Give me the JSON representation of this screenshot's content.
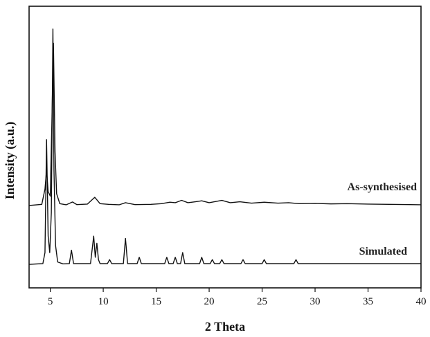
{
  "chart_data": {
    "type": "line",
    "title": "",
    "xlabel": "2 Theta",
    "ylabel": "Intensity (a.u.)",
    "xlim": [
      3,
      40
    ],
    "ylim": [
      -0.09,
      1.05
    ],
    "x_ticks": [
      "5",
      "10",
      "15",
      "20",
      "25",
      "30",
      "35",
      "40"
    ],
    "x_tick_values": [
      5,
      10,
      15,
      20,
      25,
      30,
      35,
      40
    ],
    "grid": false,
    "legend": "none",
    "series": [
      {
        "name": "As-synthesised",
        "color": "#111111",
        "baseline": 0.25,
        "x": [
          3,
          4.2,
          4.5,
          4.65,
          4.8,
          5.0,
          5.15,
          5.3,
          5.45,
          5.6,
          5.9,
          6.5,
          7.1,
          7.5,
          8.5,
          9.2,
          9.7,
          10.5,
          11.5,
          12.1,
          13,
          14.5,
          15.5,
          16.3,
          16.8,
          17.4,
          18,
          18.7,
          19.3,
          20,
          21.2,
          22,
          22.9,
          24,
          25.2,
          26.5,
          27.5,
          28.5,
          30,
          31.5,
          33,
          35,
          37,
          39,
          40
        ],
        "y": [
          0.25,
          0.255,
          0.32,
          0.4,
          0.31,
          0.29,
          0.6,
          0.94,
          0.48,
          0.3,
          0.258,
          0.253,
          0.265,
          0.254,
          0.256,
          0.285,
          0.258,
          0.255,
          0.253,
          0.262,
          0.254,
          0.255,
          0.258,
          0.264,
          0.262,
          0.272,
          0.262,
          0.266,
          0.27,
          0.262,
          0.272,
          0.262,
          0.266,
          0.26,
          0.264,
          0.26,
          0.262,
          0.258,
          0.259,
          0.257,
          0.258,
          0.256,
          0.255,
          0.254,
          0.253
        ]
      },
      {
        "name": "Simulated",
        "color": "#111111",
        "baseline": 0.0,
        "x": [
          3,
          4.3,
          4.5,
          4.65,
          4.8,
          4.95,
          5.1,
          5.25,
          5.35,
          5.5,
          5.7,
          6.2,
          6.8,
          7.0,
          7.2,
          8.8,
          9.1,
          9.25,
          9.4,
          9.55,
          9.7,
          10.4,
          10.6,
          10.8,
          11.9,
          12.1,
          12.3,
          13.2,
          13.4,
          13.6,
          15.8,
          16.0,
          16.2,
          16.6,
          16.8,
          17.0,
          17.3,
          17.5,
          17.7,
          19.1,
          19.3,
          19.5,
          20.1,
          20.3,
          20.5,
          21.0,
          21.2,
          21.4,
          23.0,
          23.2,
          23.4,
          25.0,
          25.2,
          25.4,
          28.0,
          28.2,
          28.4,
          30,
          33,
          36,
          40
        ],
        "y": [
          0.0,
          0.003,
          0.05,
          0.53,
          0.12,
          0.05,
          0.22,
          1.0,
          0.4,
          0.08,
          0.01,
          0.002,
          0.003,
          0.06,
          0.003,
          0.003,
          0.12,
          0.03,
          0.09,
          0.02,
          0.003,
          0.003,
          0.02,
          0.003,
          0.003,
          0.11,
          0.003,
          0.003,
          0.03,
          0.003,
          0.003,
          0.03,
          0.003,
          0.003,
          0.03,
          0.003,
          0.003,
          0.05,
          0.003,
          0.003,
          0.03,
          0.003,
          0.003,
          0.02,
          0.003,
          0.003,
          0.02,
          0.003,
          0.003,
          0.02,
          0.003,
          0.003,
          0.02,
          0.003,
          0.003,
          0.02,
          0.003,
          0.003,
          0.003,
          0.003,
          0.003
        ]
      }
    ]
  }
}
